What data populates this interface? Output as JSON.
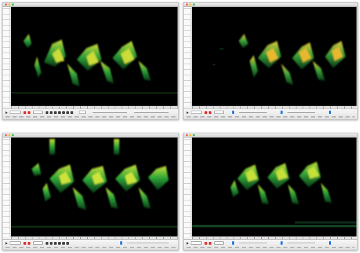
{
  "windows": [
    {
      "id": "tl",
      "frame": {
        "title": ""
      },
      "palette": {
        "axis": "#f7f7f7",
        "spectro_bg": "#000000",
        "signal_bright": "#d6e83a",
        "signal_mid": "#2fa83a",
        "signal_dark": "#0a3d18"
      },
      "toolbar": {
        "record_color": "#e0322f",
        "accent_color": "#1e7be0"
      }
    },
    {
      "id": "tr",
      "frame": {
        "title": ""
      },
      "palette": {
        "axis": "#f7f7f7",
        "spectro_bg": "#000000",
        "signal_bright": "#f0d23a",
        "signal_mid": "#3aa83a",
        "signal_dark": "#0a3d18"
      },
      "toolbar": {
        "record_color": "#e0322f",
        "accent_color": "#1e7be0"
      }
    },
    {
      "id": "bl",
      "frame": {
        "title": ""
      },
      "palette": {
        "axis": "#f7f7f7",
        "spectro_bg": "#000000",
        "signal_bright": "#d2ec3c",
        "signal_mid": "#2fae3a",
        "signal_dark": "#0a3d18"
      },
      "toolbar": {
        "record_color": "#e0322f",
        "accent_color": "#1e7be0"
      }
    },
    {
      "id": "br",
      "frame": {
        "title": ""
      },
      "palette": {
        "axis": "#f7f7f7",
        "spectro_bg": "#000000",
        "signal_bright": "#c8e83a",
        "signal_mid": "#2fa83a",
        "signal_dark": "#0a3d18"
      },
      "toolbar": {
        "record_color": "#e0322f",
        "accent_color": "#1e7be0"
      }
    }
  ],
  "icons": {
    "close": "close-icon",
    "minimize": "minimize-icon",
    "maximize": "maximize-icon",
    "play": "play-icon",
    "record": "record-icon"
  }
}
